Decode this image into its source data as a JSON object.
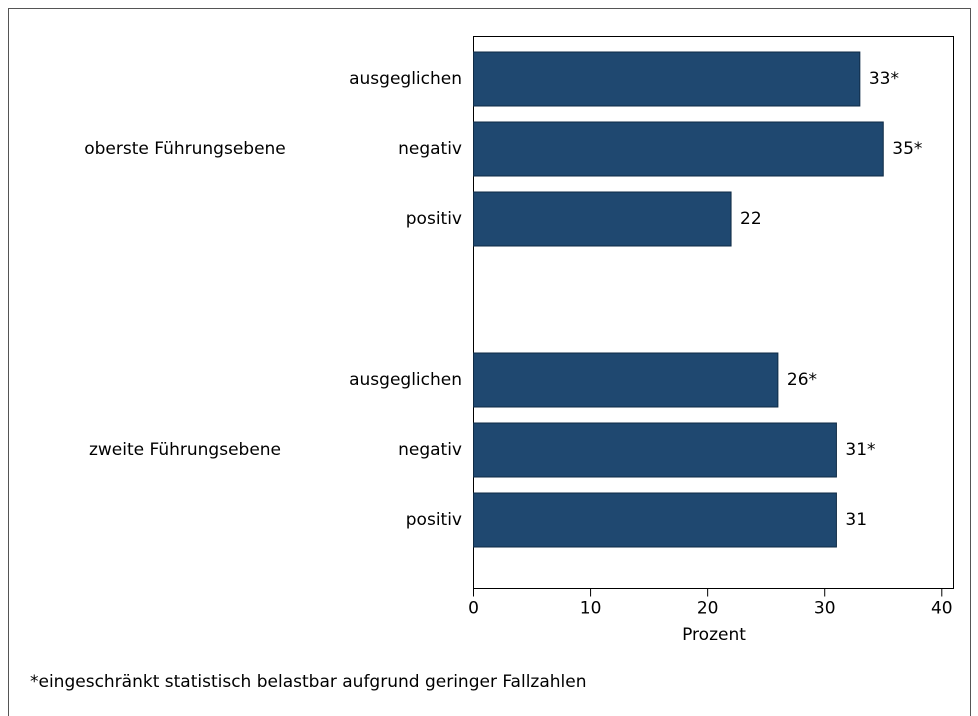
{
  "chart_data": {
    "type": "bar",
    "orientation": "horizontal",
    "groups": [
      {
        "name": "oberste Führungsebene",
        "categories": [
          "ausgeglichen",
          "negativ",
          "positiv"
        ],
        "values": [
          33,
          35,
          22
        ],
        "value_labels": [
          "33*",
          "35*",
          "22"
        ]
      },
      {
        "name": "zweite Führungsebene",
        "categories": [
          "ausgeglichen",
          "negativ",
          "positiv"
        ],
        "values": [
          26,
          31,
          31
        ],
        "value_labels": [
          "26*",
          "31*",
          "31"
        ]
      }
    ],
    "color": "#1f4870",
    "xlim": [
      0,
      41
    ],
    "xticks": [
      0,
      10,
      20,
      30,
      40
    ],
    "xlabel": "Prozent",
    "footnote": "*eingeschränkt statistisch belastbar aufgrund geringer Fallzahlen"
  }
}
